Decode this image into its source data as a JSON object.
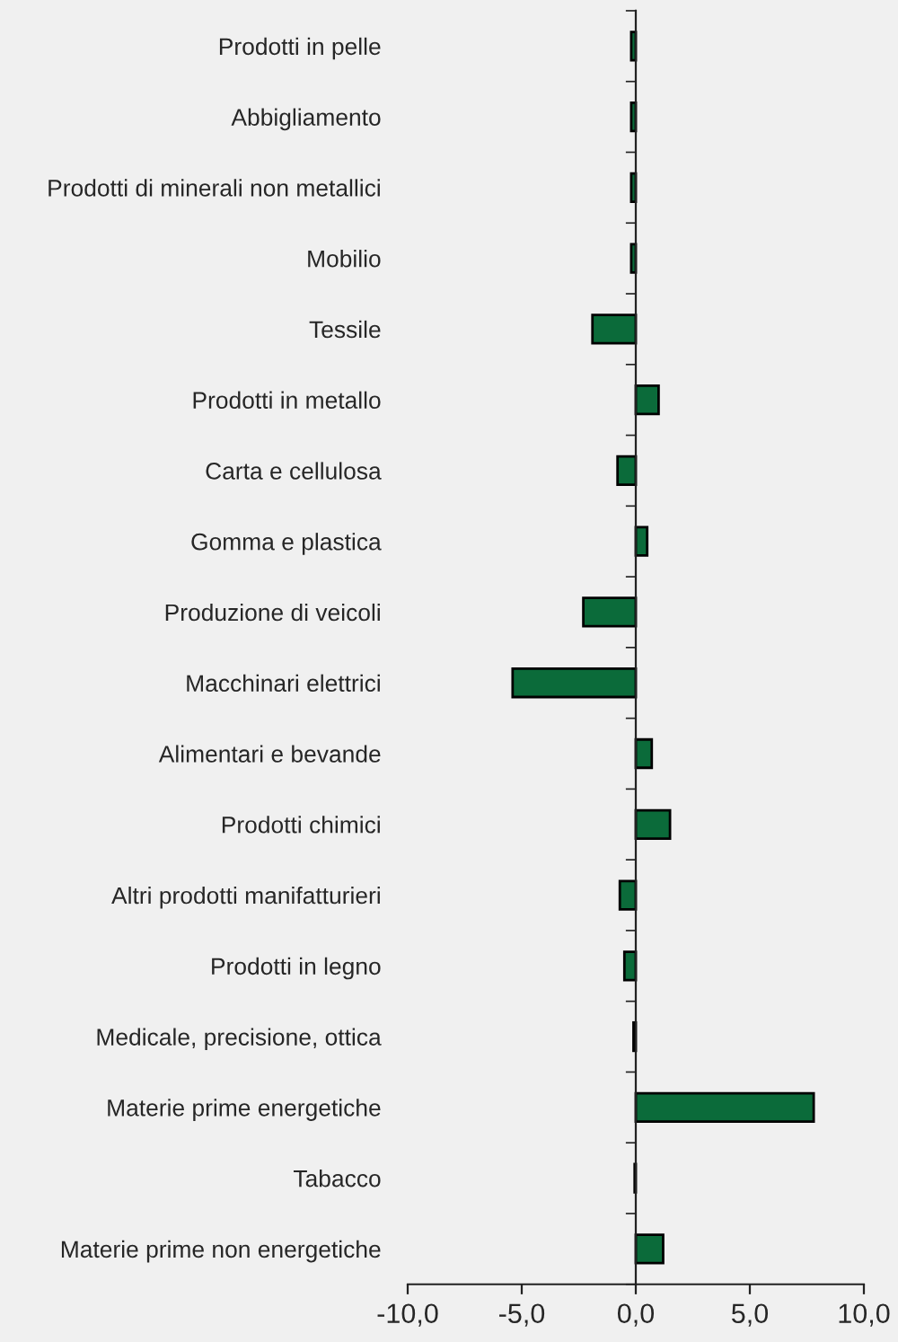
{
  "chart_data": {
    "type": "bar",
    "orientation": "horizontal",
    "categories": [
      "Prodotti in pelle",
      "Abbigliamento",
      "Prodotti di minerali non metallici",
      "Mobilio",
      "Tessile",
      "Prodotti in metallo",
      "Carta e cellulosa",
      "Gomma e plastica",
      "Produzione di veicoli",
      "Macchinari elettrici",
      "Alimentari e bevande",
      "Prodotti chimici",
      "Altri prodotti manifatturieri",
      "Prodotti in legno",
      "Medicale, precisione, ottica",
      "Materie prime energetiche",
      "Tabacco",
      "Materie prime non energetiche"
    ],
    "values": [
      -0.2,
      -0.2,
      -0.2,
      -0.2,
      -1.9,
      1.0,
      -0.8,
      0.5,
      -2.3,
      -5.4,
      0.7,
      1.5,
      -0.7,
      -0.5,
      -0.1,
      7.8,
      -0.05,
      1.2
    ],
    "color": "#0b6b3a",
    "xlim": [
      -10,
      10
    ],
    "xticks": [
      {
        "value": -10,
        "label": "-10,0"
      },
      {
        "value": -5,
        "label": "-5,0"
      },
      {
        "value": 0,
        "label": "0,0"
      },
      {
        "value": 5,
        "label": "5,0"
      },
      {
        "value": 10,
        "label": "10,0"
      }
    ],
    "legend": false
  }
}
